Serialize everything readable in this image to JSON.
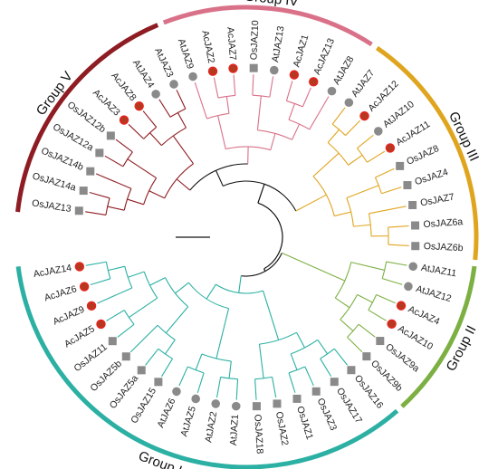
{
  "groups": [
    {
      "label": "Group V",
      "color": "#8e1c22"
    },
    {
      "label": "Group IV",
      "color": "#d97189"
    },
    {
      "label": "Group III",
      "color": "#e0a51f"
    },
    {
      "label": "Group II",
      "color": "#7db043"
    },
    {
      "label": "Group I",
      "color": "#2bb0a3"
    }
  ],
  "leaves": [
    {
      "name": "OsJAZ13",
      "marker": "square",
      "group": 0
    },
    {
      "name": "OsJAZ14a",
      "marker": "square",
      "group": 0
    },
    {
      "name": "OsJAZ14b",
      "marker": "square",
      "group": 0
    },
    {
      "name": "OsJAZ12a",
      "marker": "square",
      "group": 0
    },
    {
      "name": "OsJAZ12b",
      "marker": "square",
      "group": 0
    },
    {
      "name": "AcJAZ3",
      "marker": "red",
      "group": 0
    },
    {
      "name": "AcJAZ8",
      "marker": "red",
      "group": 0
    },
    {
      "name": "AtJAZ4",
      "marker": "circle",
      "group": 0
    },
    {
      "name": "AtJAZ3",
      "marker": "circle",
      "group": 0
    },
    {
      "name": "AtJAZ9",
      "marker": "circle",
      "group": 1
    },
    {
      "name": "AcJAZ2",
      "marker": "red",
      "group": 1
    },
    {
      "name": "AcJAZ7",
      "marker": "red",
      "group": 1
    },
    {
      "name": "OsJAZ10",
      "marker": "square",
      "group": 1
    },
    {
      "name": "AtJAZ13",
      "marker": "circle",
      "group": 1
    },
    {
      "name": "AcJAZ1",
      "marker": "red",
      "group": 1
    },
    {
      "name": "AcJAZ13",
      "marker": "red",
      "group": 1
    },
    {
      "name": "AtJAZ8",
      "marker": "circle",
      "group": 1
    },
    {
      "name": "AtJAZ7",
      "marker": "circle",
      "group": 2
    },
    {
      "name": "AcJAZ12",
      "marker": "red",
      "group": 2
    },
    {
      "name": "AtJAZ10",
      "marker": "circle",
      "group": 2
    },
    {
      "name": "AcJAZ11",
      "marker": "red",
      "group": 2
    },
    {
      "name": "OsJAZ8",
      "marker": "square",
      "group": 2
    },
    {
      "name": "OsJAZ4",
      "marker": "square",
      "group": 2
    },
    {
      "name": "OsJAZ7",
      "marker": "square",
      "group": 2
    },
    {
      "name": "OsJAZ6a",
      "marker": "square",
      "group": 2
    },
    {
      "name": "OsJAZ6b",
      "marker": "square",
      "group": 2
    },
    {
      "name": "AtJAZ11",
      "marker": "circle",
      "group": 3
    },
    {
      "name": "AtJAZ12",
      "marker": "circle",
      "group": 3
    },
    {
      "name": "AcJAZ4",
      "marker": "red",
      "group": 3
    },
    {
      "name": "AcJAZ10",
      "marker": "red",
      "group": 3
    },
    {
      "name": "OsJAZ9a",
      "marker": "square",
      "group": 3
    },
    {
      "name": "OsJAZ9b",
      "marker": "square",
      "group": 3
    },
    {
      "name": "OsJAZ16",
      "marker": "square",
      "group": 4
    },
    {
      "name": "OsJAZ17",
      "marker": "square",
      "group": 4
    },
    {
      "name": "OsJAZ3",
      "marker": "square",
      "group": 4
    },
    {
      "name": "OsJAZ1",
      "marker": "square",
      "group": 4
    },
    {
      "name": "OsJAZ2",
      "marker": "square",
      "group": 4
    },
    {
      "name": "OsJAZ18",
      "marker": "square",
      "group": 4
    },
    {
      "name": "AtJAZ1",
      "marker": "circle",
      "group": 4
    },
    {
      "name": "AtJAZ2",
      "marker": "circle",
      "group": 4
    },
    {
      "name": "AtJAZ5",
      "marker": "circle",
      "group": 4
    },
    {
      "name": "AtJAZ6",
      "marker": "circle",
      "group": 4
    },
    {
      "name": "OsJAZ15",
      "marker": "square",
      "group": 4
    },
    {
      "name": "OsJAZ5a",
      "marker": "square",
      "group": 4
    },
    {
      "name": "OsJAZ5b",
      "marker": "square",
      "group": 4
    },
    {
      "name": "OsJAZ11",
      "marker": "square",
      "group": 4
    },
    {
      "name": "AcJAZ5",
      "marker": "red",
      "group": 4
    },
    {
      "name": "AcJAZ9",
      "marker": "red",
      "group": 4
    },
    {
      "name": "AcJAZ6",
      "marker": "red",
      "group": 4
    },
    {
      "name": "AcJAZ14",
      "marker": "red",
      "group": 4
    }
  ],
  "marker_colors": {
    "square": "#8a8a8a",
    "circle": "#8a8a8a",
    "red": "#e0261f",
    "red_dark": "#b23a1e",
    "root_line": "#111111"
  }
}
